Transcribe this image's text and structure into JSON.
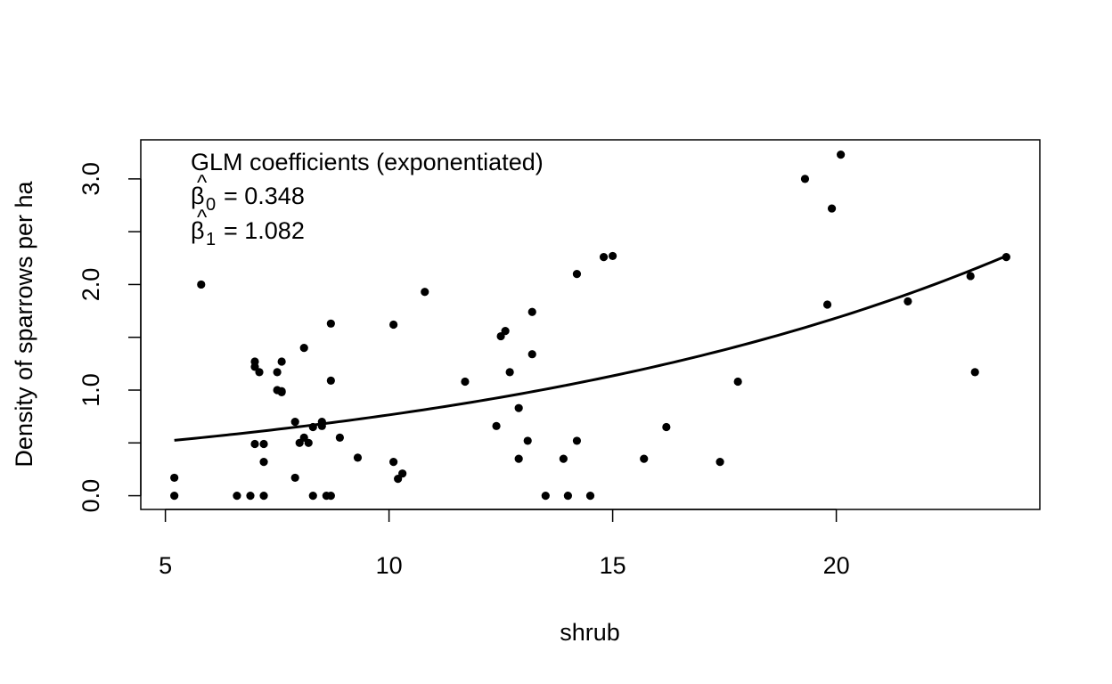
{
  "chart_data": {
    "type": "scatter",
    "title": "",
    "xlabel": "shrub",
    "ylabel": "Density of sparrows per ha",
    "xlim": [
      4.45,
      24.55
    ],
    "ylim": [
      -0.13,
      3.37
    ],
    "x_ticks": [
      5,
      10,
      15,
      20
    ],
    "x_tick_labels": [
      "5",
      "10",
      "15",
      "20"
    ],
    "y_ticks": [
      0.0,
      0.5,
      1.0,
      1.5,
      2.0,
      2.5,
      3.0
    ],
    "y_tick_labels": [
      "0.0",
      "",
      "1.0",
      "",
      "2.0",
      "",
      "3.0"
    ],
    "grid": false,
    "annotation": {
      "heading": "GLM coefficients (exponentiated)",
      "beta": "β",
      "hat": "^",
      "sub0": "0",
      "sub1": "1",
      "eq0": "= 0.348",
      "eq1": "= 1.082"
    },
    "fit": {
      "a": 0.348,
      "b": 1.082,
      "x_from": 5.2,
      "x_to": 23.8
    },
    "points": [
      [
        5.2,
        0.17
      ],
      [
        5.2,
        0.0
      ],
      [
        5.8,
        2.0
      ],
      [
        6.6,
        0.0
      ],
      [
        6.9,
        0.0
      ],
      [
        7.0,
        1.27
      ],
      [
        7.0,
        1.22
      ],
      [
        7.0,
        0.49
      ],
      [
        7.1,
        1.17
      ],
      [
        7.2,
        0.49
      ],
      [
        7.2,
        0.32
      ],
      [
        7.2,
        0.0
      ],
      [
        7.5,
        1.17
      ],
      [
        7.5,
        1.0
      ],
      [
        7.6,
        1.27
      ],
      [
        7.6,
        0.99
      ],
      [
        7.6,
        0.98
      ],
      [
        7.9,
        0.7
      ],
      [
        7.9,
        0.17
      ],
      [
        8.0,
        0.5
      ],
      [
        8.1,
        1.4
      ],
      [
        8.1,
        0.55
      ],
      [
        8.2,
        0.5
      ],
      [
        8.3,
        0.65
      ],
      [
        8.3,
        0.0
      ],
      [
        8.5,
        0.7
      ],
      [
        8.5,
        0.66
      ],
      [
        8.6,
        0.0
      ],
      [
        8.7,
        1.63
      ],
      [
        8.7,
        1.09
      ],
      [
        8.7,
        0.0
      ],
      [
        8.9,
        0.55
      ],
      [
        9.3,
        0.36
      ],
      [
        10.1,
        1.62
      ],
      [
        10.1,
        0.32
      ],
      [
        10.2,
        0.16
      ],
      [
        10.3,
        0.21
      ],
      [
        10.8,
        1.93
      ],
      [
        11.7,
        1.08
      ],
      [
        12.4,
        0.66
      ],
      [
        12.5,
        1.51
      ],
      [
        12.6,
        1.56
      ],
      [
        12.7,
        1.17
      ],
      [
        12.9,
        0.83
      ],
      [
        12.9,
        0.35
      ],
      [
        13.1,
        0.52
      ],
      [
        13.2,
        1.74
      ],
      [
        13.2,
        1.34
      ],
      [
        13.5,
        0.0
      ],
      [
        13.9,
        0.35
      ],
      [
        14.0,
        0.0
      ],
      [
        14.2,
        2.1
      ],
      [
        14.2,
        0.52
      ],
      [
        14.5,
        0.0
      ],
      [
        14.8,
        2.26
      ],
      [
        15.0,
        2.27
      ],
      [
        15.7,
        0.35
      ],
      [
        16.2,
        0.65
      ],
      [
        17.4,
        0.32
      ],
      [
        17.8,
        1.08
      ],
      [
        19.3,
        3.0
      ],
      [
        19.8,
        1.81
      ],
      [
        19.9,
        2.72
      ],
      [
        20.1,
        3.23
      ],
      [
        21.6,
        1.84
      ],
      [
        23.0,
        2.08
      ],
      [
        23.1,
        1.17
      ],
      [
        23.8,
        2.26
      ]
    ]
  }
}
